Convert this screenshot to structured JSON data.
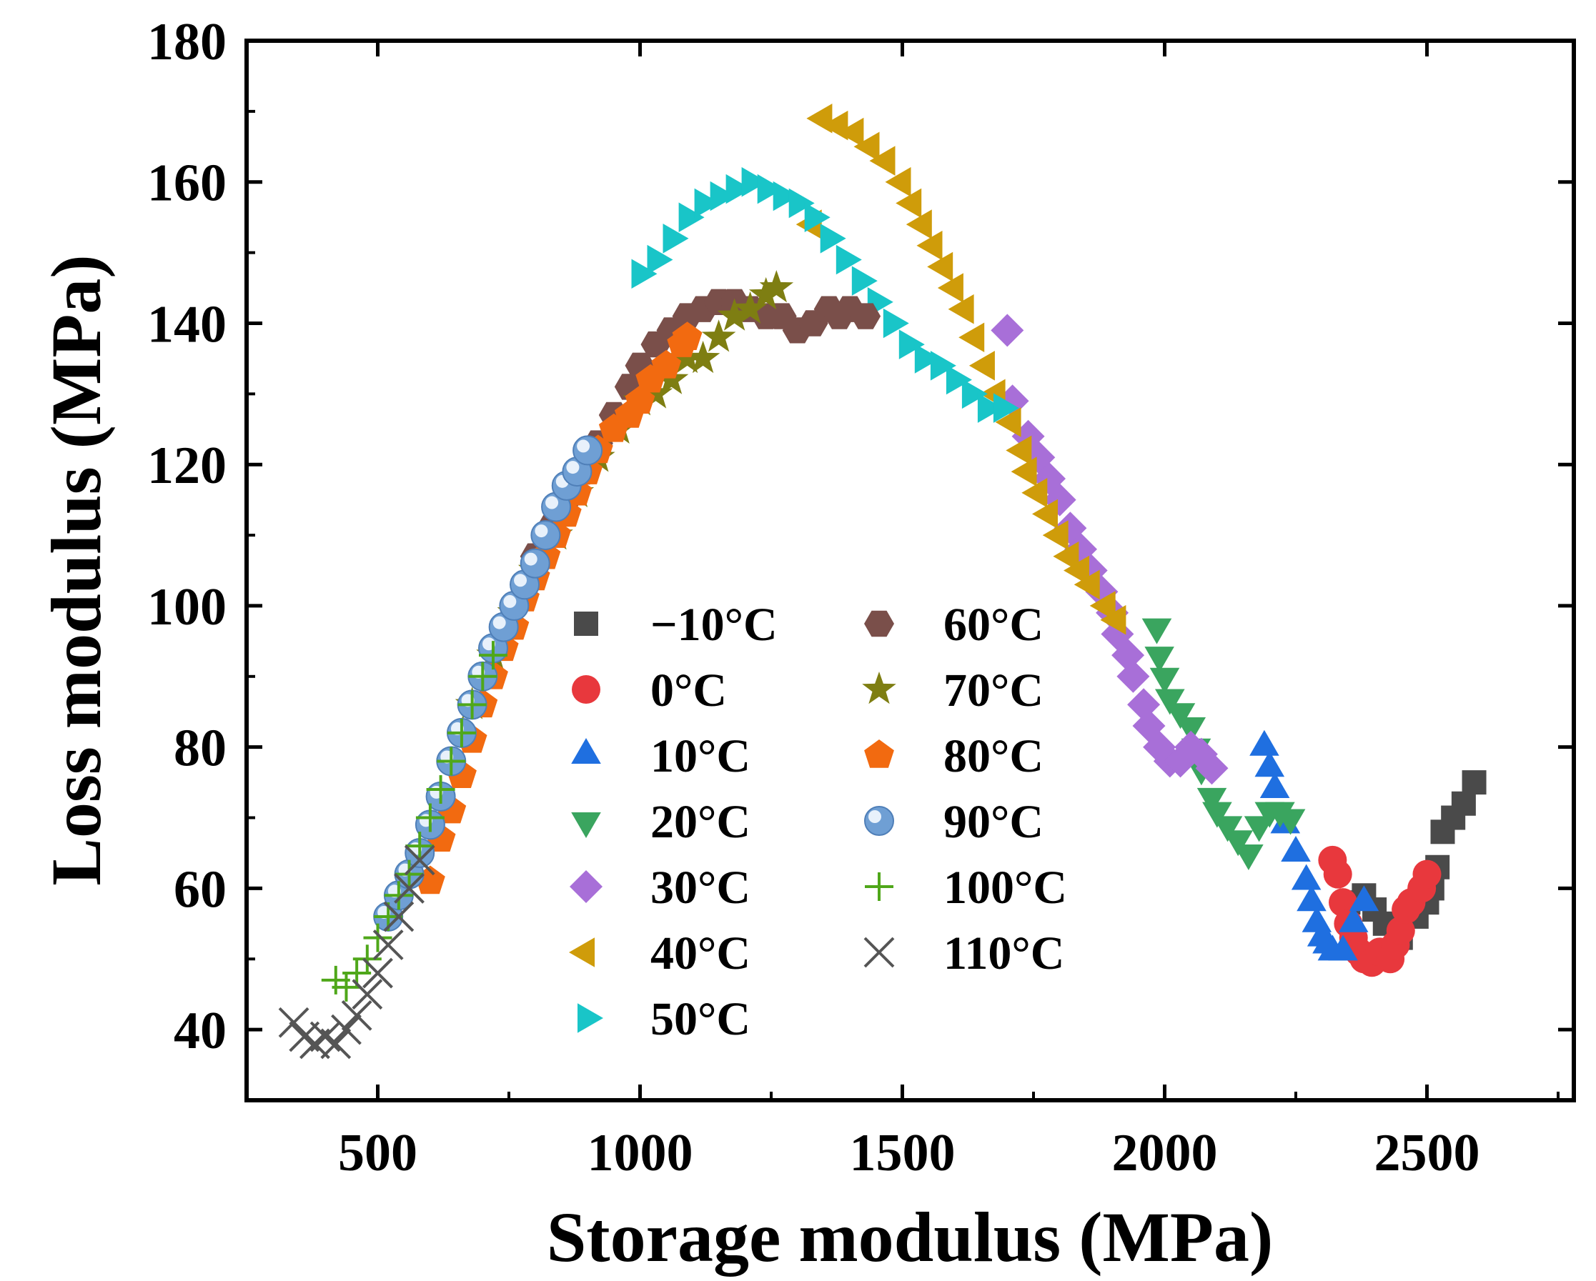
{
  "chart_data": {
    "type": "scatter",
    "title": "",
    "xlabel": "Storage modulus (MPa)",
    "ylabel": "Loss modulus (MPa)",
    "xlim": [
      250,
      2780
    ],
    "ylim": [
      30,
      180
    ],
    "xticks": [
      500,
      1000,
      1500,
      2000,
      2500
    ],
    "yticks": [
      40,
      60,
      80,
      100,
      120,
      140,
      160,
      180
    ],
    "grid": false,
    "legend_position": "center",
    "series": [
      {
        "name": "−10°C",
        "marker": "square",
        "color": "#4a4a4a",
        "points": [
          [
            2350,
            58
          ],
          [
            2380,
            59
          ],
          [
            2400,
            57
          ],
          [
            2420,
            55
          ],
          [
            2450,
            53
          ],
          [
            2480,
            56
          ],
          [
            2500,
            58
          ],
          [
            2510,
            60
          ],
          [
            2520,
            63
          ],
          [
            2530,
            68
          ],
          [
            2550,
            70
          ],
          [
            2570,
            72
          ],
          [
            2590,
            75
          ]
        ]
      },
      {
        "name": "0°C",
        "marker": "circle",
        "color": "#e8383d",
        "points": [
          [
            2320,
            64
          ],
          [
            2330,
            62
          ],
          [
            2340,
            58
          ],
          [
            2350,
            55
          ],
          [
            2360,
            53
          ],
          [
            2370,
            51
          ],
          [
            2380,
            50
          ],
          [
            2395,
            49.5
          ],
          [
            2410,
            51
          ],
          [
            2430,
            50
          ],
          [
            2440,
            52
          ],
          [
            2450,
            54
          ],
          [
            2460,
            57
          ],
          [
            2470,
            58
          ],
          [
            2490,
            60
          ],
          [
            2500,
            62
          ]
        ]
      },
      {
        "name": "10°C",
        "marker": "triangle-up",
        "color": "#1f6fe0",
        "points": [
          [
            2190,
            80
          ],
          [
            2200,
            77
          ],
          [
            2210,
            74
          ],
          [
            2230,
            69
          ],
          [
            2250,
            65
          ],
          [
            2270,
            61
          ],
          [
            2280,
            58
          ],
          [
            2290,
            55
          ],
          [
            2300,
            53
          ],
          [
            2310,
            52
          ],
          [
            2320,
            51
          ],
          [
            2340,
            51
          ],
          [
            2360,
            55
          ],
          [
            2380,
            58
          ]
        ]
      },
      {
        "name": "20°C",
        "marker": "triangle-down",
        "color": "#3aa55f",
        "points": [
          [
            1985,
            97
          ],
          [
            1990,
            93
          ],
          [
            2000,
            90
          ],
          [
            2010,
            87
          ],
          [
            2030,
            85
          ],
          [
            2050,
            83
          ],
          [
            2060,
            80
          ],
          [
            2070,
            77
          ],
          [
            2090,
            73
          ],
          [
            2100,
            71
          ],
          [
            2120,
            69
          ],
          [
            2140,
            67
          ],
          [
            2160,
            65
          ],
          [
            2180,
            69
          ],
          [
            2200,
            71
          ],
          [
            2220,
            71
          ],
          [
            2240,
            70
          ]
        ]
      },
      {
        "name": "30°C",
        "marker": "diamond",
        "color": "#a86fd8",
        "points": [
          [
            1700,
            139
          ],
          [
            1710,
            129
          ],
          [
            1740,
            124
          ],
          [
            1760,
            121
          ],
          [
            1780,
            118
          ],
          [
            1800,
            115
          ],
          [
            1820,
            111
          ],
          [
            1840,
            108
          ],
          [
            1860,
            105
          ],
          [
            1880,
            102
          ],
          [
            1900,
            99
          ],
          [
            1910,
            96
          ],
          [
            1930,
            93
          ],
          [
            1940,
            90
          ],
          [
            1960,
            86
          ],
          [
            1970,
            83
          ],
          [
            1990,
            80
          ],
          [
            2010,
            78
          ],
          [
            2030,
            78
          ],
          [
            2050,
            80
          ],
          [
            2070,
            79
          ],
          [
            2090,
            77
          ]
        ]
      },
      {
        "name": "40°C",
        "marker": "triangle-left",
        "color": "#cf9c0a",
        "points": [
          [
            1330,
            154
          ],
          [
            1350,
            169
          ],
          [
            1380,
            168
          ],
          [
            1410,
            167
          ],
          [
            1440,
            165
          ],
          [
            1470,
            163
          ],
          [
            1500,
            160
          ],
          [
            1520,
            157
          ],
          [
            1540,
            154
          ],
          [
            1560,
            151
          ],
          [
            1580,
            148
          ],
          [
            1600,
            145
          ],
          [
            1620,
            142
          ],
          [
            1640,
            138
          ],
          [
            1660,
            134
          ],
          [
            1680,
            130
          ],
          [
            1710,
            126
          ],
          [
            1730,
            122
          ],
          [
            1740,
            119
          ],
          [
            1760,
            116
          ],
          [
            1780,
            113
          ],
          [
            1800,
            110
          ],
          [
            1820,
            107
          ],
          [
            1840,
            105
          ],
          [
            1860,
            103
          ],
          [
            1890,
            100
          ],
          [
            1910,
            98
          ]
        ]
      },
      {
        "name": "50°C",
        "marker": "triangle-right",
        "color": "#19c5c8",
        "points": [
          [
            1000,
            147
          ],
          [
            1030,
            149
          ],
          [
            1060,
            152
          ],
          [
            1090,
            155
          ],
          [
            1120,
            157
          ],
          [
            1150,
            158
          ],
          [
            1180,
            159
          ],
          [
            1210,
            160
          ],
          [
            1240,
            159
          ],
          [
            1270,
            158
          ],
          [
            1300,
            157
          ],
          [
            1330,
            155
          ],
          [
            1360,
            152
          ],
          [
            1390,
            149
          ],
          [
            1420,
            146
          ],
          [
            1450,
            143
          ],
          [
            1480,
            140
          ],
          [
            1510,
            137
          ],
          [
            1540,
            135
          ],
          [
            1570,
            134
          ],
          [
            1600,
            132
          ],
          [
            1630,
            130
          ],
          [
            1660,
            128
          ],
          [
            1690,
            128
          ]
        ]
      },
      {
        "name": "60°C",
        "marker": "hexagon",
        "color": "#7a4f4a",
        "points": [
          [
            800,
            107
          ],
          [
            830,
            111
          ],
          [
            860,
            115
          ],
          [
            890,
            119
          ],
          [
            920,
            123
          ],
          [
            950,
            127
          ],
          [
            980,
            131
          ],
          [
            1000,
            134
          ],
          [
            1030,
            137
          ],
          [
            1060,
            139
          ],
          [
            1090,
            141
          ],
          [
            1120,
            142
          ],
          [
            1150,
            143
          ],
          [
            1180,
            143
          ],
          [
            1210,
            142
          ],
          [
            1240,
            141
          ],
          [
            1270,
            141
          ],
          [
            1300,
            139
          ],
          [
            1330,
            140
          ],
          [
            1360,
            142
          ],
          [
            1380,
            141
          ],
          [
            1400,
            142
          ],
          [
            1430,
            141
          ]
        ]
      },
      {
        "name": "70°C",
        "marker": "star",
        "color": "#7e7e12",
        "points": [
          [
            680,
            86
          ],
          [
            720,
            93
          ],
          [
            760,
            99
          ],
          [
            800,
            105
          ],
          [
            840,
            110
          ],
          [
            880,
            116
          ],
          [
            920,
            121
          ],
          [
            960,
            125
          ],
          [
            1000,
            129
          ],
          [
            1030,
            130
          ],
          [
            1060,
            132
          ],
          [
            1090,
            135
          ],
          [
            1120,
            135
          ],
          [
            1150,
            138
          ],
          [
            1180,
            141
          ],
          [
            1210,
            142
          ],
          [
            1240,
            144
          ],
          [
            1260,
            145
          ]
        ]
      },
      {
        "name": "80°C",
        "marker": "pentagon",
        "color": "#f26a10",
        "points": [
          [
            600,
            61
          ],
          [
            620,
            67
          ],
          [
            640,
            71
          ],
          [
            660,
            76
          ],
          [
            680,
            81
          ],
          [
            700,
            86
          ],
          [
            720,
            90
          ],
          [
            740,
            94
          ],
          [
            760,
            97
          ],
          [
            780,
            101
          ],
          [
            800,
            104
          ],
          [
            820,
            107
          ],
          [
            840,
            110
          ],
          [
            860,
            113
          ],
          [
            880,
            116
          ],
          [
            900,
            119
          ],
          [
            920,
            122
          ],
          [
            950,
            125
          ],
          [
            980,
            127
          ],
          [
            1000,
            129
          ],
          [
            1020,
            132
          ],
          [
            1050,
            134
          ],
          [
            1080,
            137
          ],
          [
            1090,
            138
          ]
        ]
      },
      {
        "name": "90°C",
        "marker": "sphere",
        "color": "#6f9fd4",
        "points": [
          [
            520,
            56
          ],
          [
            540,
            59
          ],
          [
            560,
            62
          ],
          [
            580,
            65
          ],
          [
            600,
            69
          ],
          [
            620,
            73
          ],
          [
            640,
            78
          ],
          [
            660,
            82
          ],
          [
            680,
            86
          ],
          [
            700,
            90
          ],
          [
            720,
            94
          ],
          [
            740,
            97
          ],
          [
            760,
            100
          ],
          [
            780,
            103
          ],
          [
            800,
            106
          ],
          [
            820,
            110
          ],
          [
            840,
            114
          ],
          [
            860,
            117
          ],
          [
            880,
            119
          ],
          [
            900,
            122
          ]
        ]
      },
      {
        "name": "100°C",
        "marker": "plus",
        "color": "#4fa71a",
        "points": [
          [
            420,
            47
          ],
          [
            440,
            46
          ],
          [
            460,
            48
          ],
          [
            480,
            50
          ],
          [
            500,
            53
          ],
          [
            520,
            56
          ],
          [
            540,
            59
          ],
          [
            560,
            62
          ],
          [
            580,
            66
          ],
          [
            600,
            70
          ],
          [
            620,
            74
          ],
          [
            640,
            78
          ],
          [
            660,
            82
          ],
          [
            680,
            86
          ],
          [
            700,
            90
          ],
          [
            720,
            93
          ]
        ]
      },
      {
        "name": "110°C",
        "marker": "x",
        "color": "#555555",
        "points": [
          [
            340,
            41
          ],
          [
            360,
            39
          ],
          [
            380,
            38
          ],
          [
            400,
            39
          ],
          [
            420,
            38
          ],
          [
            440,
            40
          ],
          [
            460,
            42
          ],
          [
            480,
            45
          ],
          [
            500,
            48
          ],
          [
            520,
            52
          ],
          [
            540,
            56
          ],
          [
            560,
            60
          ],
          [
            580,
            64
          ]
        ]
      }
    ]
  }
}
